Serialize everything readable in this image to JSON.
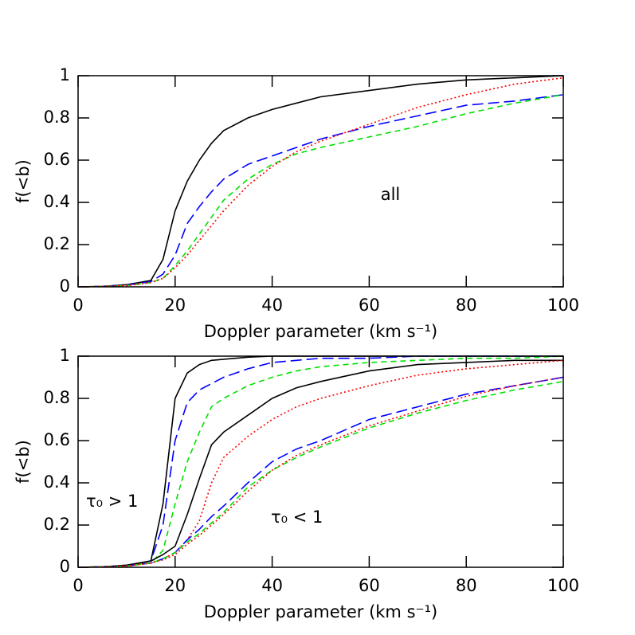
{
  "chart_data": [
    {
      "type": "line",
      "xlabel": "Doppler parameter (km s⁻¹)",
      "ylabel": "f(<b)",
      "annotations": [
        "all"
      ],
      "xlim": [
        0,
        100
      ],
      "xticks": [
        0,
        20,
        40,
        60,
        80,
        100
      ],
      "ylim": [
        0,
        1
      ],
      "yticks": [
        0,
        0.2,
        0.4,
        0.6,
        0.8,
        1
      ],
      "x": [
        0,
        5,
        10,
        15,
        17.5,
        20,
        22.5,
        25,
        27.5,
        30,
        35,
        40,
        45,
        50,
        60,
        70,
        80,
        90,
        100
      ],
      "series": [
        {
          "color": "#000000",
          "linestyle": "solid",
          "values": [
            0,
            0.002,
            0.01,
            0.03,
            0.13,
            0.36,
            0.5,
            0.6,
            0.68,
            0.74,
            0.8,
            0.84,
            0.87,
            0.9,
            0.93,
            0.96,
            0.98,
            0.99,
            1.0
          ]
        },
        {
          "color": "#0000ff",
          "linestyle": "long-dashed",
          "values": [
            0,
            0.002,
            0.008,
            0.025,
            0.06,
            0.15,
            0.3,
            0.38,
            0.45,
            0.51,
            0.58,
            0.62,
            0.66,
            0.7,
            0.76,
            0.81,
            0.86,
            0.88,
            0.91
          ]
        },
        {
          "color": "#00e000",
          "linestyle": "dashed",
          "values": [
            0,
            0.002,
            0.006,
            0.02,
            0.04,
            0.1,
            0.17,
            0.25,
            0.33,
            0.41,
            0.51,
            0.58,
            0.63,
            0.66,
            0.71,
            0.76,
            0.82,
            0.87,
            0.91
          ]
        },
        {
          "color": "#ff0000",
          "linestyle": "dotted",
          "values": [
            0,
            0.002,
            0.006,
            0.02,
            0.04,
            0.09,
            0.15,
            0.22,
            0.29,
            0.36,
            0.48,
            0.57,
            0.64,
            0.69,
            0.77,
            0.85,
            0.91,
            0.96,
            0.99
          ]
        }
      ]
    },
    {
      "type": "line",
      "xlabel": "Doppler parameter (km s⁻¹)",
      "ylabel": "f(<b)",
      "annotations": [
        "τ₀ > 1",
        "τ₀ < 1"
      ],
      "xlim": [
        0,
        100
      ],
      "xticks": [
        0,
        20,
        40,
        60,
        80,
        100
      ],
      "ylim": [
        0,
        1
      ],
      "yticks": [
        0,
        0.2,
        0.4,
        0.6,
        0.8,
        1
      ],
      "x": [
        0,
        5,
        10,
        15,
        17.5,
        20,
        22.5,
        25,
        27.5,
        30,
        35,
        40,
        45,
        50,
        60,
        70,
        80,
        90,
        100
      ],
      "series": [
        {
          "color": "#000000",
          "linestyle": "solid",
          "values": [
            0,
            0.002,
            0.01,
            0.03,
            0.3,
            0.8,
            0.92,
            0.96,
            0.98,
            0.985,
            0.995,
            1,
            1,
            1,
            1,
            1,
            1,
            1,
            1
          ]
        },
        {
          "color": "#0000ff",
          "linestyle": "long-dashed",
          "values": [
            0,
            0.002,
            0.008,
            0.03,
            0.2,
            0.6,
            0.78,
            0.84,
            0.87,
            0.9,
            0.94,
            0.97,
            0.98,
            0.99,
            0.99,
            1,
            1,
            1,
            1
          ]
        },
        {
          "color": "#00e000",
          "linestyle": "dashed",
          "values": [
            0,
            0.002,
            0.006,
            0.02,
            0.08,
            0.3,
            0.5,
            0.64,
            0.76,
            0.8,
            0.86,
            0.9,
            0.93,
            0.95,
            0.97,
            0.98,
            0.99,
            0.99,
            1
          ]
        },
        {
          "color": "#000000",
          "linestyle": "solid",
          "values": [
            0,
            0.002,
            0.008,
            0.03,
            0.06,
            0.1,
            0.25,
            0.42,
            0.58,
            0.64,
            0.72,
            0.8,
            0.85,
            0.88,
            0.93,
            0.96,
            0.97,
            0.98,
            0.98
          ]
        },
        {
          "color": "#ff0000",
          "linestyle": "dotted",
          "values": [
            0,
            0.002,
            0.006,
            0.02,
            0.04,
            0.07,
            0.13,
            0.22,
            0.4,
            0.52,
            0.62,
            0.7,
            0.76,
            0.8,
            0.86,
            0.91,
            0.94,
            0.96,
            0.98
          ]
        },
        {
          "color": "#0000ff",
          "linestyle": "long-dashed",
          "values": [
            0,
            0.002,
            0.006,
            0.02,
            0.04,
            0.07,
            0.13,
            0.18,
            0.24,
            0.29,
            0.4,
            0.5,
            0.56,
            0.6,
            0.7,
            0.76,
            0.82,
            0.86,
            0.9
          ]
        },
        {
          "color": "#00e000",
          "linestyle": "dashed",
          "values": [
            0,
            0.002,
            0.006,
            0.02,
            0.04,
            0.07,
            0.12,
            0.16,
            0.21,
            0.26,
            0.38,
            0.46,
            0.52,
            0.57,
            0.66,
            0.73,
            0.79,
            0.84,
            0.88
          ]
        },
        {
          "color": "#ff0000",
          "linestyle": "dotted",
          "values": [
            0,
            0.002,
            0.006,
            0.02,
            0.035,
            0.06,
            0.11,
            0.15,
            0.2,
            0.25,
            0.36,
            0.46,
            0.53,
            0.58,
            0.67,
            0.74,
            0.81,
            0.86,
            0.9
          ]
        }
      ]
    }
  ]
}
